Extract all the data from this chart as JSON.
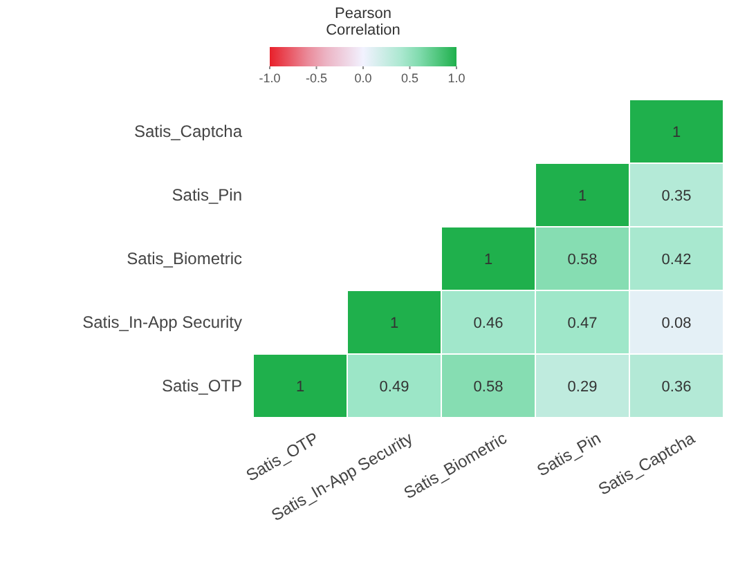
{
  "chart_data": {
    "type": "heatmap",
    "categories": [
      "Satis_OTP",
      "Satis_In-App Security",
      "Satis_Biometric",
      "Satis_Pin",
      "Satis_Captcha"
    ],
    "y_categories": [
      "Satis_Captcha",
      "Satis_Pin",
      "Satis_Biometric",
      "Satis_In-App Security",
      "Satis_OTP"
    ],
    "cells": [
      [
        null,
        null,
        null,
        null,
        1
      ],
      [
        null,
        null,
        null,
        1,
        0.35
      ],
      [
        null,
        null,
        1,
        0.58,
        0.42
      ],
      [
        null,
        1,
        0.46,
        0.47,
        0.08
      ],
      [
        1,
        0.49,
        0.58,
        0.29,
        0.36
      ]
    ],
    "data_labels": true,
    "legend_title": "Pearson Correlation",
    "clim": [
      -1,
      1
    ],
    "cticks": [
      {
        "value": -1,
        "label": "-1.0"
      },
      {
        "value": -0.5,
        "label": "-0.5"
      },
      {
        "value": 0,
        "label": "0.0"
      },
      {
        "value": 0.5,
        "label": "0.5"
      },
      {
        "value": 1,
        "label": "1.0"
      }
    ]
  }
}
